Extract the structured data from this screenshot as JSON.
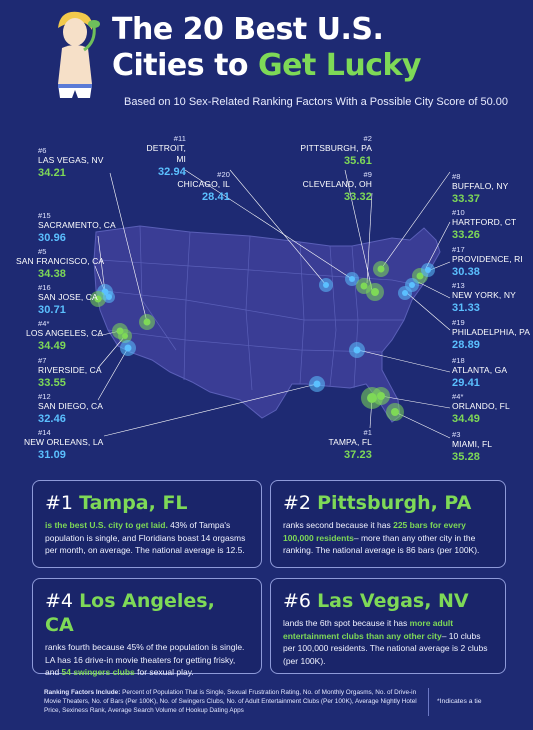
{
  "header": {
    "title_line1": "The 20 Best U.S.",
    "title_line2_white": "Cities to ",
    "title_line2_accent": "Get Lucky",
    "subtitle": "Based on 10 Sex-Related Ranking Factors With a Possible City Score of 50.00"
  },
  "cities": {
    "las_vegas": {
      "rank": "#6",
      "name": "LAS VEGAS, NV",
      "score": "34.21"
    },
    "sacramento": {
      "rank": "#15",
      "name": "SACRAMENTO, CA",
      "score": "30.96"
    },
    "san_francisco": {
      "rank": "#5",
      "name": "SAN FRANCISCO, CA",
      "score": "34.38"
    },
    "san_jose": {
      "rank": "#16",
      "name": "SAN JOSE, CA",
      "score": "30.71"
    },
    "los_angeles": {
      "rank": "#4*",
      "name": "LOS ANGELES, CA",
      "score": "34.49"
    },
    "riverside": {
      "rank": "#7",
      "name": "RIVERSIDE, CA",
      "score": "33.55"
    },
    "san_diego": {
      "rank": "#12",
      "name": "SAN DIEGO, CA",
      "score": "32.46"
    },
    "new_orleans": {
      "rank": "#14",
      "name": "NEW ORLEANS, LA",
      "score": "31.09"
    },
    "detroit": {
      "rank": "#11",
      "name": "DETROIT, MI",
      "score": "32.94"
    },
    "chicago": {
      "rank": "#20",
      "name": "CHICAGO, IL",
      "score": "28.41"
    },
    "pittsburgh": {
      "rank": "#2",
      "name": "PITTSBURGH, PA",
      "score": "35.61"
    },
    "cleveland": {
      "rank": "#9",
      "name": "CLEVELAND, OH",
      "score": "33.32"
    },
    "buffalo": {
      "rank": "#8",
      "name": "BUFFALO, NY",
      "score": "33.37"
    },
    "hartford": {
      "rank": "#10",
      "name": "HARTFORD, CT",
      "score": "33.26"
    },
    "providence": {
      "rank": "#17",
      "name": "PROVIDENCE, RI",
      "score": "30.38"
    },
    "new_york": {
      "rank": "#13",
      "name": "NEW YORK, NY",
      "score": "31.33"
    },
    "philadelphia": {
      "rank": "#19",
      "name": "PHILADELPHIA, PA",
      "score": "28.89"
    },
    "atlanta": {
      "rank": "#18",
      "name": "ATLANTA, GA",
      "score": "29.41"
    },
    "orlando": {
      "rank": "#4*",
      "name": "ORLANDO, FL",
      "score": "34.49"
    },
    "tampa": {
      "rank": "#1",
      "name": "TAMPA, FL",
      "score": "37.23"
    },
    "miami": {
      "rank": "#3",
      "name": "MIAMI, FL",
      "score": "35.28"
    }
  },
  "cards": {
    "tampa": {
      "rank": "#1 ",
      "city": "Tampa, FL",
      "highlight": "is the best U.S. city to get laid.",
      "text": " 43% of Tampa's population is single, and Floridians boast 14 orgasms per month, on average. The national average is 12.5."
    },
    "pittsburgh": {
      "rank": "#2 ",
      "city": "Pittsburgh, PA",
      "text1": "ranks second because it has ",
      "highlight": "225 bars for every 100,000 residents",
      "text2": "– more than any other city in the ranking. The national average is 86 bars (per 100K)."
    },
    "los_angeles": {
      "rank": "#4 ",
      "city": "Los Angeles, CA",
      "text1": "ranks fourth because 45% of the population is single. LA has 16 drive-in movie theaters for getting frisky, and ",
      "highlight": "54 swingers clubs",
      "text2": " for sexual play."
    },
    "las_vegas": {
      "rank": "#6 ",
      "city": "Las Vegas, NV",
      "text1": "lands the 6th spot because it has ",
      "highlight": "more adult entertainment clubs than any other city",
      "text2": "– 10 clubs per 100,000 residents. The national average is 2 clubs (per 100K)."
    }
  },
  "footer": {
    "factors_label": "Ranking Factors Include:",
    "factors_text": " Percent of Population That is Single, Sexual Frustration Rating, No. of Monthly Orgasms, No. of Drive-in Movie Theaters, No. of Bars (Per 100K), No. of Swingers Clubs, No. of Adult Entertainment Clubs (Per 100K), Average Nightly Hotel Price, Sexiness Rank, Average Search Volume of Hookup Dating Apps",
    "tie_note": "*Indicates a tie"
  },
  "colors": {
    "background": "#1e2a73",
    "accent_green": "#7ed957",
    "accent_blue": "#5bc0ff",
    "map_fill": "#3a3d95"
  }
}
